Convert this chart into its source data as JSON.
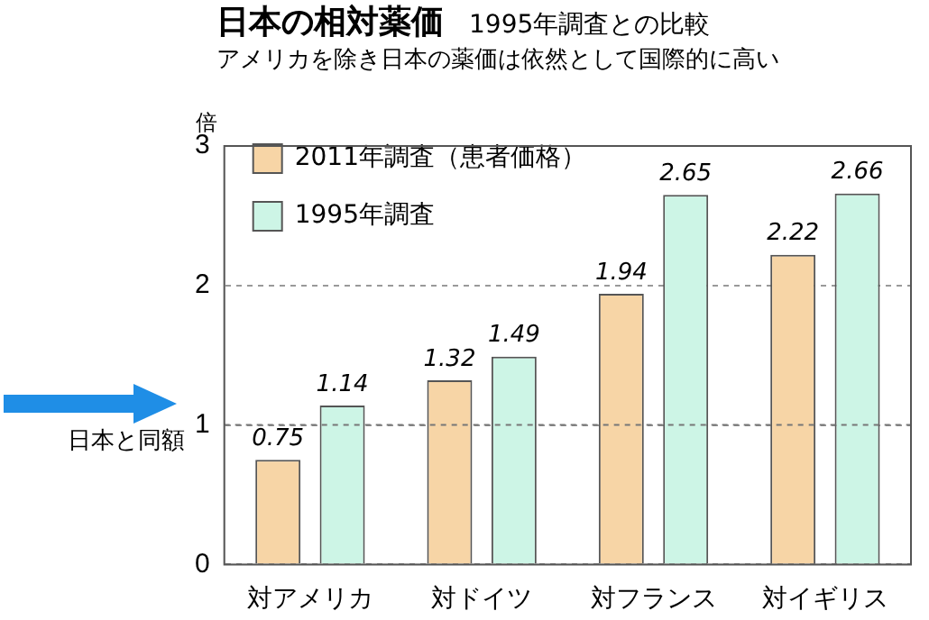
{
  "chart_data": {
    "type": "bar",
    "title": "日本の相対薬価",
    "subtitle": "1995年調査との比較",
    "annotations": [
      "アメリカを除き日本の薬価は依然として国際的に高い"
    ],
    "ylabel": "倍",
    "categories": [
      "対アメリカ",
      "対ドイツ",
      "対フランス",
      "対イギリス"
    ],
    "series": [
      {
        "name": "2011年調査（患者価格）",
        "color": "#f7d5a6",
        "values": [
          0.75,
          1.32,
          1.94,
          2.22
        ]
      },
      {
        "name": "1995年調査",
        "color": "#cdf5e6",
        "values": [
          1.14,
          1.49,
          2.65,
          2.66
        ]
      }
    ],
    "ylim": [
      0,
      3
    ],
    "yticks": [
      0,
      1,
      2,
      3
    ],
    "grid": "y",
    "legend": "top left",
    "data_labels": true,
    "ref_lines": [
      {
        "axis": "y",
        "value": 1,
        "label": "日本と同額"
      }
    ]
  }
}
